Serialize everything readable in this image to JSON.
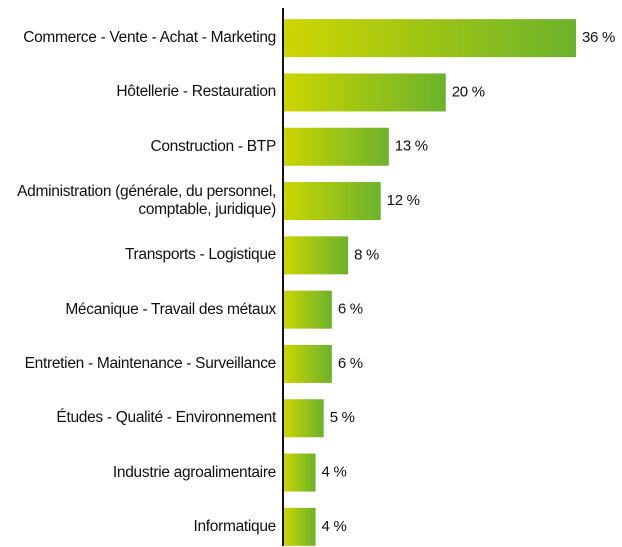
{
  "chart_data": {
    "type": "bar",
    "orientation": "horizontal",
    "categories": [
      "Commerce - Vente - Achat - Marketing",
      "Hôtellerie - Restauration",
      "Construction - BTP",
      "Administration (générale, du personnel, comptable, juridique)",
      "Transports - Logistique",
      "Mécanique - Travail des métaux",
      "Entretien - Maintenance - Surveillance",
      "Études - Qualité - Environnement",
      "Industrie agroalimentaire",
      "Informatique"
    ],
    "values": [
      36,
      20,
      13,
      12,
      8,
      6,
      6,
      5,
      4,
      4
    ],
    "value_labels": [
      "36 %",
      "20 %",
      "13 %",
      "12 %",
      "8 %",
      "6 %",
      "6 %",
      "5 %",
      "4 %",
      "4 %"
    ],
    "colors": [
      "#cdd600",
      "#6cb22c"
    ]
  }
}
